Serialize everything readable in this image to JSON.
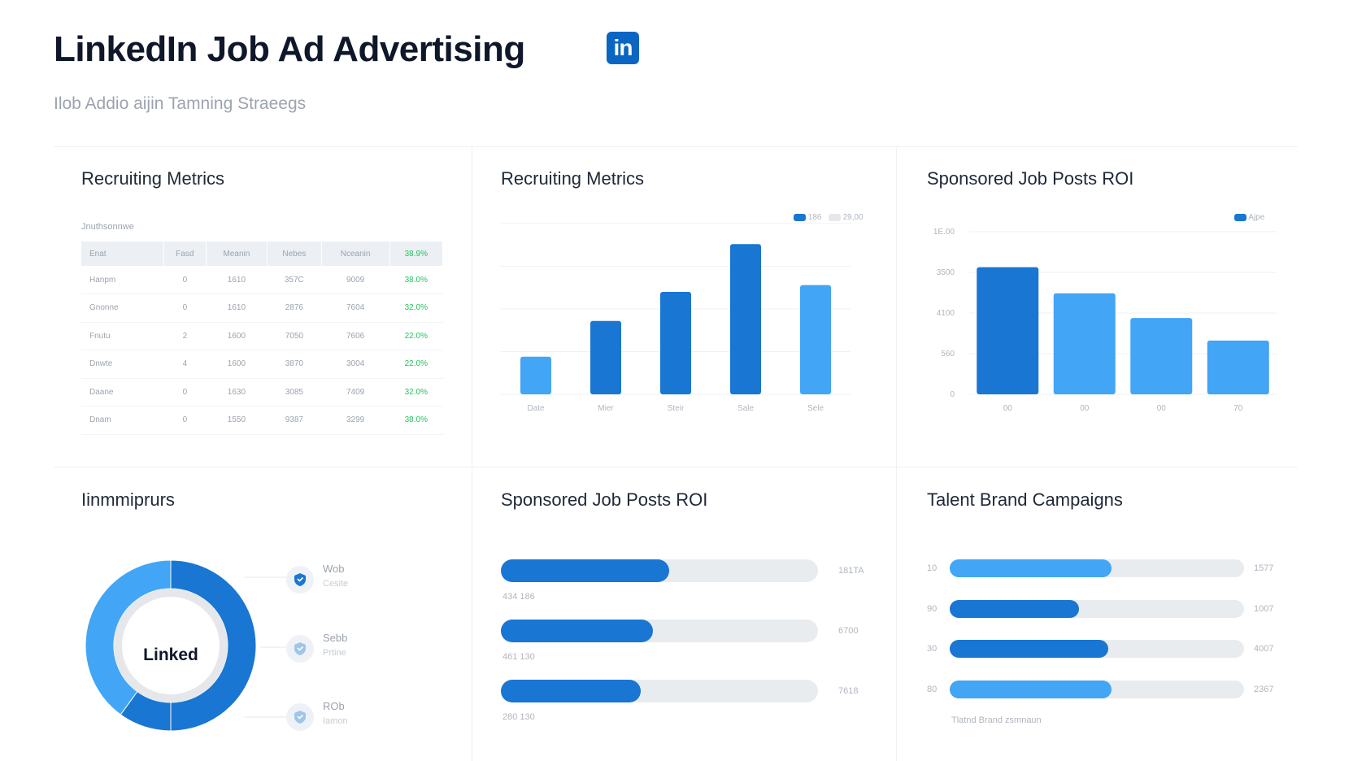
{
  "header": {
    "title": "LinkedIn Job Ad Advertising",
    "logo_text": "in",
    "subtitle": "Ilob Addio aijin Tamning Straeegs"
  },
  "colors": {
    "brand": "#0a66c2",
    "primary": "#1976d2",
    "secondary": "#42a5f5",
    "track": "#e9ecef",
    "positive": "#22c55e"
  },
  "panels": {
    "p1": {
      "title": "Recruiting Metrics",
      "caption": "Jnuthsonnwe",
      "columns": [
        "Enat",
        "Fasd",
        "Meanin",
        "Nebes",
        "Nceanin",
        "38.9%"
      ],
      "rows": [
        [
          "Hanpm",
          "0",
          "1610",
          "357C",
          "9009",
          "38.0%"
        ],
        [
          "Gnonne",
          "0",
          "1610",
          "2876",
          "7604",
          "32.0%"
        ],
        [
          "Fnutu",
          "2",
          "1600",
          "7050",
          "7606",
          "22.0%"
        ],
        [
          "Dnwte",
          "4",
          "1600",
          "3870",
          "3004",
          "22.0%"
        ],
        [
          "Daane",
          "0",
          "1630",
          "3085",
          "7409",
          "32.0%"
        ],
        [
          "Dnam",
          "0",
          "1550",
          "9387",
          "3299",
          "38.0%"
        ]
      ]
    },
    "p2": {
      "title": "Recruiting Metrics",
      "legend": [
        "186",
        "29,00"
      ]
    },
    "p3": {
      "title": "Sponsored Job Posts ROI",
      "legend": [
        "Ajpe"
      ]
    },
    "p4": {
      "title": "Iinmmiprurs",
      "center_label": "Linked",
      "legend": [
        {
          "icon": "shield-icon",
          "label": "Wob",
          "sub": "Cesite"
        },
        {
          "icon": "shield-icon",
          "label": "Sebb",
          "sub": "Prtine"
        },
        {
          "icon": "shield-icon",
          "label": "ROb",
          "sub": "Iamon"
        }
      ]
    },
    "p5": {
      "title": "Sponsored Job Posts ROI",
      "bars": [
        {
          "value_label": "181TA",
          "sub_label": "434 186",
          "progress": 0.53
        },
        {
          "value_label": "6700",
          "sub_label": "461 130",
          "progress": 0.48
        },
        {
          "value_label": "7618",
          "sub_label": "280 130",
          "progress": 0.44
        }
      ]
    },
    "p6": {
      "title": "Talent Brand Campaigns",
      "caption": "Tlatnd Brand zsmnaun",
      "bars": [
        {
          "left_label": "10",
          "value_label": "1577",
          "progress": 0.55,
          "tone": "secondary"
        },
        {
          "left_label": "90",
          "value_label": "1007",
          "progress": 0.44,
          "tone": "primary"
        },
        {
          "left_label": "30",
          "value_label": "4007",
          "progress": 0.54,
          "tone": "primary"
        },
        {
          "left_label": "80",
          "value_label": "2367",
          "progress": 0.55,
          "tone": "secondary"
        }
      ]
    }
  },
  "chart_data": [
    {
      "id": "recruiting-metrics-bar",
      "type": "bar",
      "title": "Recruiting Metrics",
      "categories": [
        "Date",
        "Mier",
        "Steir",
        "Sale",
        "Sele"
      ],
      "values": [
        22,
        43,
        60,
        88,
        64
      ],
      "tones": [
        "secondary",
        "primary",
        "primary",
        "primary",
        "secondary"
      ],
      "ylim": [
        0,
        100
      ],
      "legend": [
        "186",
        "29,00"
      ],
      "grid": true
    },
    {
      "id": "sponsored-roi-bar",
      "type": "bar",
      "title": "Sponsored Job Posts ROI",
      "categories": [
        "00",
        "00",
        "00",
        "70"
      ],
      "values": [
        4380,
        3480,
        2630,
        1850
      ],
      "tones": [
        "primary",
        "secondary",
        "secondary",
        "secondary"
      ],
      "yticks": [
        "0",
        "560",
        "4100",
        "3500",
        "1E.00"
      ],
      "ylim": [
        0,
        5600
      ],
      "legend": [
        "Ajpe"
      ],
      "grid": true
    },
    {
      "id": "donut",
      "type": "pie",
      "title": "Iinmmiprurs",
      "center_label": "Linked",
      "slices": [
        {
          "value": 50,
          "tone": "primary"
        },
        {
          "value": 10,
          "tone": "primary"
        },
        {
          "value": 40,
          "tone": "secondary"
        }
      ]
    }
  ]
}
